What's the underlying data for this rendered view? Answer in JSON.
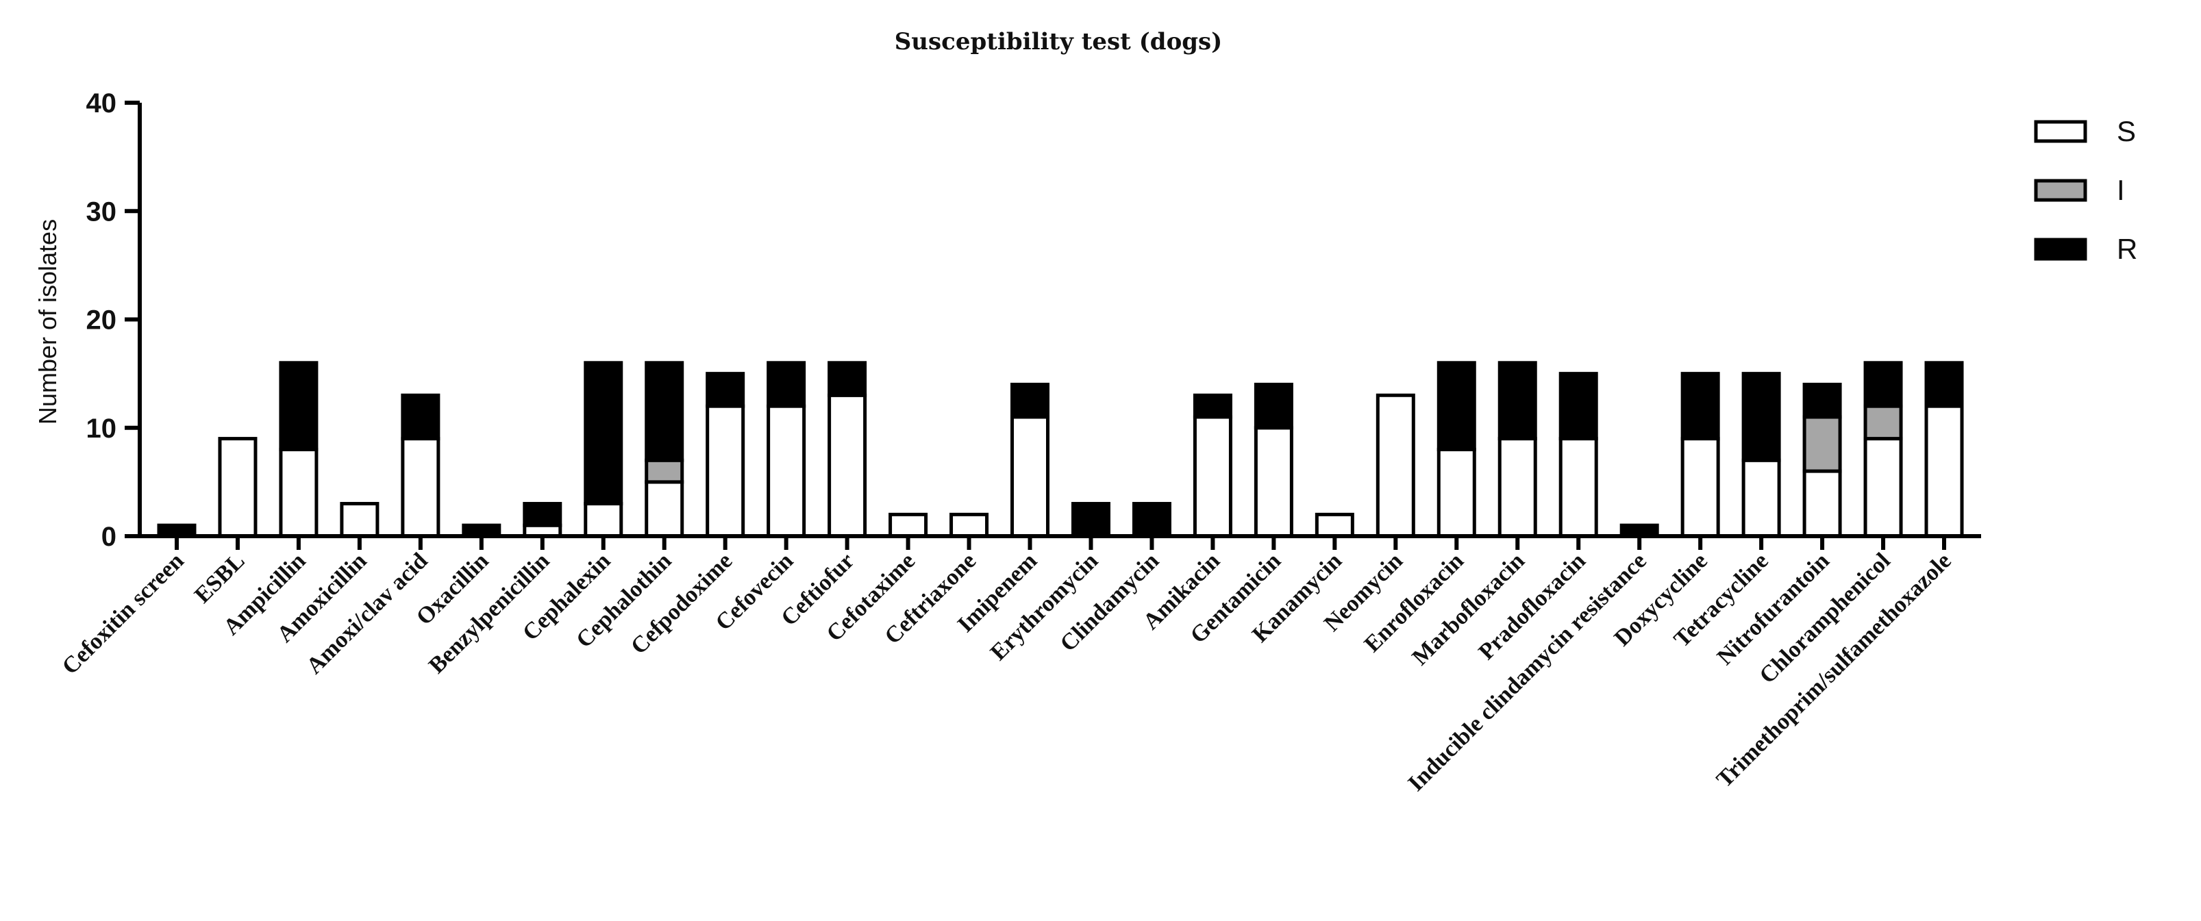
{
  "chart_data": {
    "type": "bar",
    "stacked": true,
    "title": "Susceptibility test (dogs)",
    "xlabel": "",
    "ylabel": "Number of isolates",
    "ylim": [
      0,
      40
    ],
    "yticks": [
      0,
      10,
      20,
      30,
      40
    ],
    "legend_position": "top-right",
    "categories": [
      "Cefoxitin screen",
      "ESBL",
      "Ampicillin",
      "Amoxicillin",
      "Amoxi/clav acid",
      "Oxacillin",
      "Benzylpenicillin",
      "Cephalexin",
      "Cephalothin",
      "Cefpodoxime",
      "Cefovecin",
      "Ceftiofur",
      "Cefotaxime",
      "Ceftriaxone",
      "Imipenem",
      "Erythromycin",
      "Clindamycin",
      "Amikacin",
      "Gentamicin",
      "Kanamycin",
      "Neomycin",
      "Enrofloxacin",
      "Marbofloxacin",
      "Pradofloxacin",
      "Inducible clindamycin resistance",
      "Doxycycline",
      "Tetracycline",
      "Nitrofurantoin",
      "Chloramphenicol",
      "Trimethoprim/sulfamethoxazole"
    ],
    "series": [
      {
        "name": "S",
        "color": "#ffffff",
        "values": [
          0,
          9,
          8,
          3,
          9,
          0,
          1,
          3,
          5,
          12,
          12,
          13,
          2,
          2,
          11,
          0,
          0,
          11,
          10,
          2,
          13,
          8,
          9,
          9,
          0,
          9,
          7,
          6,
          9,
          12
        ]
      },
      {
        "name": "I",
        "color": "#a6a6a6",
        "values": [
          0,
          0,
          0,
          0,
          0,
          0,
          0,
          0,
          2,
          0,
          0,
          0,
          0,
          0,
          0,
          0,
          0,
          0,
          0,
          0,
          0,
          0,
          0,
          0,
          0,
          0,
          0,
          5,
          3,
          0
        ]
      },
      {
        "name": "R",
        "color": "#000000",
        "values": [
          1,
          0,
          8,
          0,
          4,
          1,
          2,
          13,
          9,
          3,
          4,
          3,
          0,
          0,
          3,
          3,
          3,
          2,
          4,
          0,
          0,
          8,
          7,
          6,
          1,
          6,
          8,
          3,
          4,
          4
        ]
      }
    ]
  }
}
